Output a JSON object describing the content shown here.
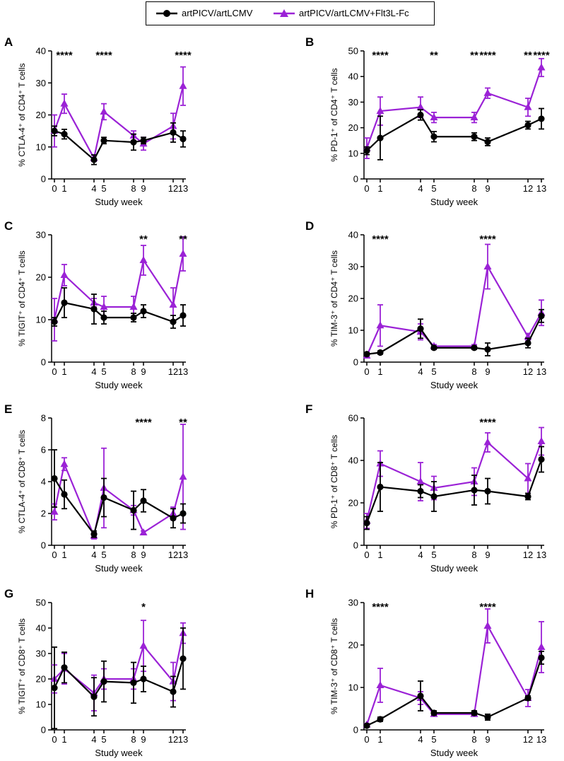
{
  "legend": {
    "series1": "artPICV/artLCMV",
    "series2": "artPICV/artLCMV+Flt3L-Fc"
  },
  "colors": {
    "series1": "#000000",
    "series2": "#9b22d6"
  },
  "chart_data": [
    {
      "type": "line",
      "panel": "A",
      "ylabel": "% CTLA-4⁺ of CD4⁺ T cells",
      "xlabel": "Study week",
      "x": [
        0,
        1,
        4,
        5,
        8,
        9,
        12,
        13
      ],
      "ylim": [
        0,
        40
      ],
      "yticks": [
        0,
        10,
        20,
        30,
        40
      ],
      "series": [
        {
          "name": "artPICV/artLCMV",
          "values": [
            15,
            14,
            6,
            12,
            11.5,
            12,
            14.5,
            12.5
          ],
          "err": [
            1.5,
            1.5,
            1.5,
            1,
            2.5,
            1,
            3,
            2.5
          ]
        },
        {
          "name": "artPICV/artLCMV+Flt3L-Fc",
          "values": [
            15,
            23.5,
            6.5,
            21,
            13.5,
            11,
            16.5,
            29
          ],
          "err": [
            5,
            3,
            1,
            2.5,
            1.5,
            2,
            4,
            6
          ]
        }
      ],
      "significance": [
        {
          "x": 1,
          "label": "****"
        },
        {
          "x": 5,
          "label": "****"
        },
        {
          "x": 13,
          "label": "****"
        }
      ]
    },
    {
      "type": "line",
      "panel": "B",
      "ylabel": "% PD-1⁺ of CD4⁺ T cells",
      "xlabel": "Study week",
      "x": [
        0,
        1,
        4,
        5,
        8,
        9,
        12,
        13
      ],
      "ylim": [
        0,
        50
      ],
      "yticks": [
        0,
        10,
        20,
        30,
        40,
        50
      ],
      "series": [
        {
          "name": "artPICV/artLCMV",
          "values": [
            11,
            16,
            25,
            16.5,
            16.5,
            14.5,
            21,
            23.5
          ],
          "err": [
            1.5,
            8.5,
            2,
            2,
            1.5,
            1.5,
            1.5,
            4
          ]
        },
        {
          "name": "artPICV/artLCMV+Flt3L-Fc",
          "values": [
            12,
            26.5,
            28,
            24,
            24,
            33.5,
            28,
            43.5
          ],
          "err": [
            4,
            5.5,
            4,
            2,
            2,
            2,
            3.5,
            3.5
          ]
        }
      ],
      "significance": [
        {
          "x": 1,
          "label": "****"
        },
        {
          "x": 5,
          "label": "**"
        },
        {
          "x": 8,
          "label": "**"
        },
        {
          "x": 9,
          "label": "****"
        },
        {
          "x": 12,
          "label": "**"
        },
        {
          "x": 13,
          "label": "****"
        }
      ]
    },
    {
      "type": "line",
      "panel": "C",
      "ylabel": "% TIGIT⁺ of CD4⁺ T cells",
      "xlabel": "Study week",
      "x": [
        0,
        1,
        4,
        5,
        8,
        9,
        12,
        13
      ],
      "ylim": [
        0,
        30
      ],
      "yticks": [
        0,
        10,
        20,
        30
      ],
      "series": [
        {
          "name": "artPICV/artLCMV",
          "values": [
            9.5,
            14,
            12.5,
            10.5,
            10.5,
            12,
            9.5,
            11
          ],
          "err": [
            1,
            3.5,
            3.5,
            1.5,
            1,
            1.5,
            1.5,
            2.5
          ]
        },
        {
          "name": "artPICV/artLCMV+Flt3L-Fc",
          "values": [
            10,
            20.5,
            14,
            13,
            13,
            24,
            13.5,
            25.5
          ],
          "err": [
            5,
            2.5,
            1,
            2.5,
            2.5,
            3.5,
            4,
            4
          ]
        }
      ],
      "significance": [
        {
          "x": 9,
          "label": "**"
        },
        {
          "x": 13,
          "label": "**"
        }
      ]
    },
    {
      "type": "line",
      "panel": "D",
      "ylabel": "% TIM-3⁺ of CD4⁺ T cells",
      "xlabel": "Study week",
      "x": [
        0,
        1,
        4,
        5,
        8,
        9,
        12,
        13
      ],
      "ylim": [
        0,
        40
      ],
      "yticks": [
        0,
        10,
        20,
        30,
        40
      ],
      "series": [
        {
          "name": "artPICV/artLCMV",
          "values": [
            2.5,
            3,
            10.5,
            4.5,
            4.5,
            4,
            6,
            14.5
          ],
          "err": [
            0.5,
            0.5,
            3,
            0.5,
            0.5,
            2,
            1.5,
            2
          ]
        },
        {
          "name": "artPICV/artLCMV+Flt3L-Fc",
          "values": [
            2,
            11.5,
            9.5,
            5,
            5,
            30,
            8,
            15.5
          ],
          "err": [
            0.5,
            6.5,
            2.5,
            0.5,
            0.5,
            7,
            1,
            4
          ]
        }
      ],
      "significance": [
        {
          "x": 1,
          "label": "****"
        },
        {
          "x": 9,
          "label": "****"
        }
      ]
    },
    {
      "type": "line",
      "panel": "E",
      "ylabel": "% CTLA-4⁺ of CD8⁺ T cells",
      "xlabel": "Study week",
      "x": [
        0,
        1,
        4,
        5,
        8,
        9,
        12,
        13
      ],
      "ylim": [
        0,
        8
      ],
      "yticks": [
        0,
        2,
        4,
        6,
        8
      ],
      "series": [
        {
          "name": "artPICV/artLCMV",
          "values": [
            4.2,
            3.2,
            0.7,
            3,
            2.2,
            2.8,
            1.7,
            2
          ],
          "err": [
            1.8,
            0.9,
            0.2,
            1.2,
            1.2,
            0.7,
            0.6,
            0.6
          ]
        },
        {
          "name": "artPICV/artLCMV+Flt3L-Fc",
          "values": [
            2.1,
            5.1,
            0.6,
            3.6,
            2.2,
            0.8,
            2,
            4.3
          ],
          "err": [
            0.5,
            0.4,
            0.2,
            2.5,
            0.3,
            0.1,
            0.4,
            3.3
          ]
        }
      ],
      "significance": [
        {
          "x": 9,
          "label": "****"
        },
        {
          "x": 13,
          "label": "**"
        }
      ]
    },
    {
      "type": "line",
      "panel": "F",
      "ylabel": "% PD-1⁺ of CD8⁺ T cells",
      "xlabel": "Study week",
      "x": [
        0,
        1,
        4,
        5,
        8,
        9,
        12,
        13
      ],
      "ylim": [
        0,
        60
      ],
      "yticks": [
        0,
        20,
        40,
        60
      ],
      "series": [
        {
          "name": "artPICV/artLCMV",
          "values": [
            10.5,
            27.5,
            25.5,
            23,
            26,
            25.5,
            23,
            40.5
          ],
          "err": [
            3,
            11.5,
            3,
            7,
            7,
            6,
            1.5,
            6
          ]
        },
        {
          "name": "artPICV/artLCMV+Flt3L-Fc",
          "values": [
            11.5,
            38.5,
            30,
            27,
            30,
            48.5,
            31.5,
            49
          ],
          "err": [
            3.5,
            6,
            9,
            5.5,
            6.5,
            4.5,
            7,
            6.5
          ]
        }
      ],
      "significance": [
        {
          "x": 9,
          "label": "****"
        }
      ]
    },
    {
      "type": "line",
      "panel": "G",
      "ylabel": "% TIGIT⁺ of CD8⁺ T cells",
      "xlabel": "Study week",
      "x": [
        0,
        1,
        4,
        5,
        8,
        9,
        12,
        13
      ],
      "ylim": [
        0,
        50
      ],
      "yticks": [
        0,
        10,
        20,
        30,
        40,
        50
      ],
      "series": [
        {
          "name": "artPICV/artLCMV",
          "values": [
            16.5,
            24.5,
            13,
            19,
            18.5,
            20,
            15,
            28
          ],
          "err": [
            16,
            6,
            7.5,
            8,
            8,
            5,
            6,
            12
          ]
        },
        {
          "name": "artPICV/artLCMV+Flt3L-Fc",
          "values": [
            20,
            24,
            14.5,
            20,
            20,
            33,
            19,
            38
          ],
          "err": [
            5.5,
            6,
            7,
            4,
            4,
            10,
            7.5,
            4
          ]
        }
      ],
      "significance": [
        {
          "x": 9,
          "label": "*"
        }
      ]
    },
    {
      "type": "line",
      "panel": "H",
      "ylabel": "% TIM-3⁺ of CD8⁺ T cells",
      "xlabel": "Study week",
      "x": [
        0,
        1,
        4,
        5,
        8,
        9,
        12,
        13
      ],
      "ylim": [
        0,
        30
      ],
      "yticks": [
        0,
        10,
        20,
        30
      ],
      "series": [
        {
          "name": "artPICV/artLCMV",
          "values": [
            1,
            2.5,
            8,
            4,
            4,
            3,
            7.5,
            17
          ],
          "err": [
            0.3,
            0.5,
            3.5,
            0.5,
            0.5,
            0.7,
            0.5,
            1.5
          ]
        },
        {
          "name": "artPICV/artLCMV+Flt3L-Fc",
          "values": [
            1.2,
            10.5,
            7.5,
            3.7,
            3.7,
            24.5,
            7.5,
            19.5
          ],
          "err": [
            0.3,
            4,
            1.5,
            0.4,
            0.4,
            4,
            2,
            6
          ]
        }
      ],
      "significance": [
        {
          "x": 1,
          "label": "****"
        },
        {
          "x": 9,
          "label": "****"
        }
      ]
    }
  ]
}
